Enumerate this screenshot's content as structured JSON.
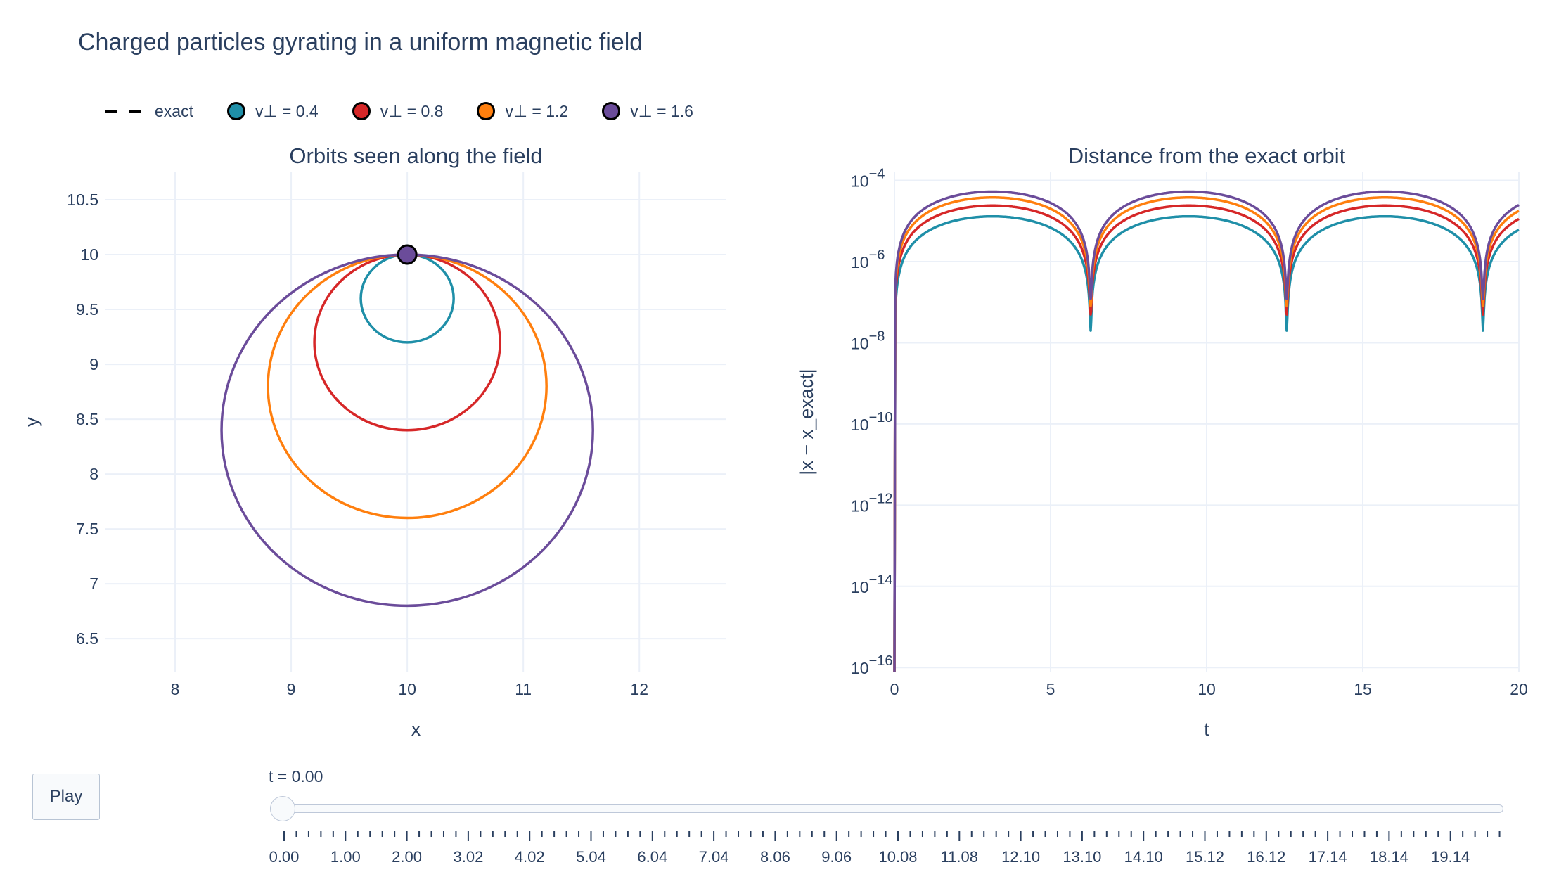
{
  "title": "Charged particles gyrating in a uniform magnetic field",
  "legend": [
    {
      "label": "exact",
      "style": "dash",
      "color": "#000000"
    },
    {
      "label": "v⊥ = 0.4",
      "style": "dot",
      "color": "#1f8fa8"
    },
    {
      "label": "v⊥ = 0.8",
      "style": "dot",
      "color": "#d62728"
    },
    {
      "label": "v⊥ = 1.2",
      "style": "dot",
      "color": "#ff7f0e"
    },
    {
      "label": "v⊥ = 1.6",
      "style": "dot",
      "color": "#6b4c9a"
    }
  ],
  "chart_data": [
    {
      "type": "scatter",
      "title": "Orbits seen along the field",
      "xlabel": "x",
      "ylabel": "y",
      "xlim": [
        7.4,
        12.75
      ],
      "ylim": [
        6.2,
        10.75
      ],
      "x_ticks": [
        "8",
        "9",
        "10",
        "11",
        "12"
      ],
      "y_ticks": [
        "6.5",
        "7",
        "7.5",
        "8",
        "8.5",
        "9",
        "9.5",
        "10",
        "10.5"
      ],
      "grid": true,
      "series": [
        {
          "name": "v⊥ = 0.4",
          "color": "#1f8fa8",
          "center": [
            10,
            9.6
          ],
          "radius": 0.4
        },
        {
          "name": "v⊥ = 0.8",
          "color": "#d62728",
          "center": [
            10,
            9.2
          ],
          "radius": 0.8
        },
        {
          "name": "v⊥ = 1.2",
          "color": "#ff7f0e",
          "center": [
            10,
            8.8
          ],
          "radius": 1.2
        },
        {
          "name": "v⊥ = 1.6",
          "color": "#6b4c9a",
          "center": [
            10,
            8.4
          ],
          "radius": 1.6
        }
      ],
      "current_marker": {
        "x": 10,
        "y": 10
      }
    },
    {
      "type": "line",
      "title": "Distance from the exact orbit",
      "xlabel": "t",
      "ylabel": "|x − x_exact|",
      "xlim": [
        0,
        20
      ],
      "ylim_log10": [
        -16.1,
        -3.8
      ],
      "log_y": true,
      "x_ticks": [
        "0",
        "5",
        "10",
        "15",
        "20"
      ],
      "y_ticks": [
        {
          "base": "10",
          "exp": "−4"
        },
        {
          "base": "10",
          "exp": "−6"
        },
        {
          "base": "10",
          "exp": "−8"
        },
        {
          "base": "10",
          "exp": "−10"
        },
        {
          "base": "10",
          "exp": "−12"
        },
        {
          "base": "10",
          "exp": "−14"
        },
        {
          "base": "10",
          "exp": "−16"
        }
      ],
      "grid": true,
      "series": [
        {
          "name": "v⊥ = 0.4",
          "color": "#1f8fa8",
          "peak": 1.3e-05,
          "dip": 2e-08
        },
        {
          "name": "v⊥ = 0.8",
          "color": "#d62728",
          "peak": 2.4e-05,
          "dip": 5e-08
        },
        {
          "name": "v⊥ = 1.2",
          "color": "#ff7f0e",
          "peak": 3.8e-05,
          "dip": 8e-08
        },
        {
          "name": "v⊥ = 1.6",
          "color": "#6b4c9a",
          "peak": 5.3e-05,
          "dip": 1.2e-07
        }
      ],
      "minima_t": [
        6.283,
        12.566,
        18.85
      ]
    }
  ],
  "controls": {
    "play_label": "Play",
    "slider_current": "t = 0.00",
    "slider_labels": [
      "0.00",
      "1.00",
      "2.00",
      "3.02",
      "4.02",
      "5.04",
      "6.04",
      "7.04",
      "8.06",
      "9.06",
      "10.08",
      "11.08",
      "12.10",
      "13.10",
      "14.10",
      "15.12",
      "16.12",
      "17.14",
      "18.14",
      "19.14"
    ]
  }
}
